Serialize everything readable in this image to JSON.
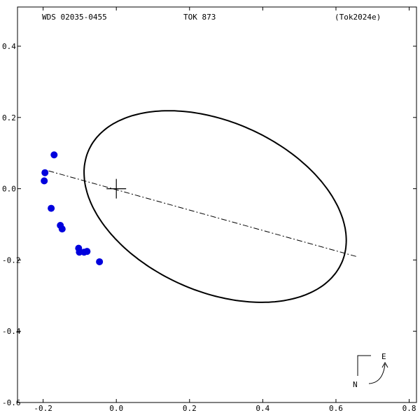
{
  "header": {
    "left": "WDS 02035-0455",
    "center": "TOK 873",
    "right": "(Tok2024e)"
  },
  "compass": {
    "east": "E",
    "north": "N"
  },
  "chart_data": {
    "type": "scatter",
    "title": "",
    "xlabel": "",
    "ylabel": "",
    "xlim": [
      -0.27,
      0.82
    ],
    "ylim": [
      -0.6,
      0.51
    ],
    "x_ticks": [
      -0.2,
      0.0,
      0.2,
      0.4,
      0.6,
      0.8
    ],
    "x_tick_labels": [
      "-0.2",
      "0.0",
      "0.2",
      "0.4",
      "0.6",
      "0.8"
    ],
    "y_ticks": [
      0.4,
      0.2,
      0.0,
      -0.2,
      -0.4,
      -0.6
    ],
    "y_tick_labels": [
      "0.4",
      "0.2",
      "0.0",
      "-0.2",
      "-0.4",
      "-0.6"
    ],
    "grid": false,
    "orbit_ellipse": {
      "center": [
        0.27,
        -0.05
      ],
      "semi_major": 0.38,
      "semi_minor": 0.237,
      "rotation_deg": -25.3
    },
    "line_of_apsides": {
      "from": [
        -0.185,
        0.05
      ],
      "to": [
        0.655,
        -0.19
      ]
    },
    "primary_star": [
      0.0,
      0.0
    ],
    "observations": {
      "x": [
        -0.17,
        -0.195,
        -0.197,
        -0.178,
        -0.153,
        -0.148,
        -0.103,
        -0.101,
        -0.088,
        -0.08,
        -0.046
      ],
      "y": [
        0.095,
        0.045,
        0.022,
        -0.055,
        -0.103,
        -0.113,
        -0.167,
        -0.178,
        -0.178,
        -0.176,
        -0.205
      ]
    },
    "colors": {
      "observation": "#0000dd",
      "orbit": "#000000"
    }
  }
}
